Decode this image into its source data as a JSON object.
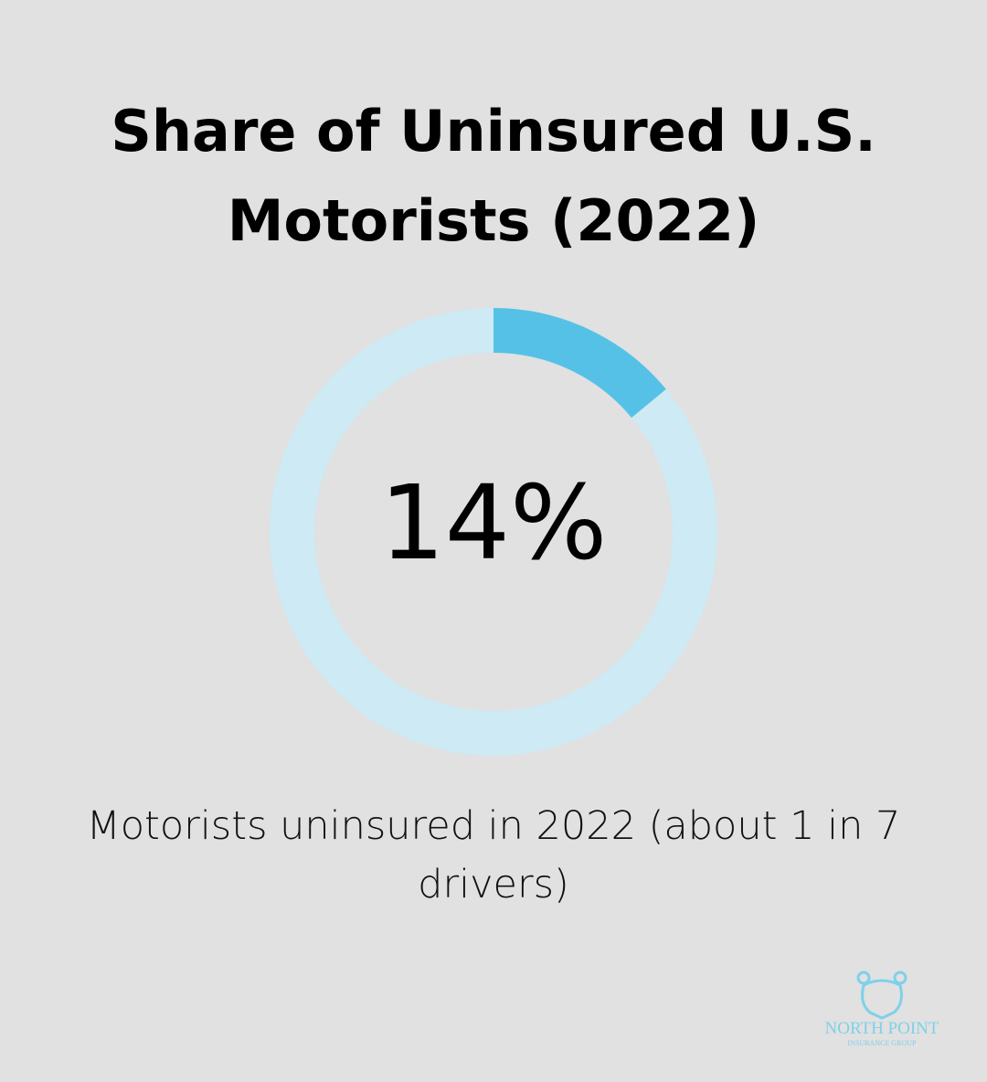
{
  "chart_data": {
    "type": "donut",
    "title": "Share of Uninsured U.S. Motorists (2022)",
    "categories": [
      "Motorists uninsured in 2022 (about 1 in 7 drivers)"
    ],
    "values": [
      14
    ],
    "value_labels": [
      "14%"
    ],
    "color": "#56c1e6",
    "track_color": "#cdeaf5"
  },
  "logo": {
    "name": "NORTH POINT",
    "tagline": "INSURANCE GROUP"
  }
}
